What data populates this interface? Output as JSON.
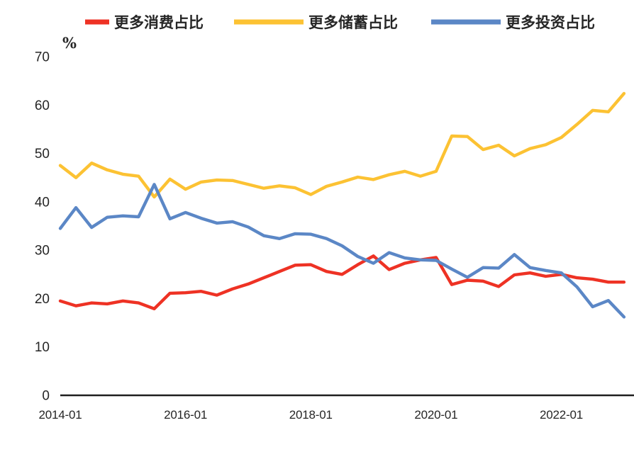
{
  "chart": {
    "unit_label": "%",
    "axis_color": "#1f1f1f",
    "text_color": "#262626",
    "background": "#ffffff"
  },
  "chart_data": {
    "type": "line",
    "title": "",
    "xlabel": "",
    "ylabel": "%",
    "ylim": [
      0,
      70
    ],
    "yticks": [
      0,
      10,
      20,
      30,
      40,
      50,
      60,
      70
    ],
    "xticks": [
      "2014-01",
      "2016-01",
      "2018-01",
      "2020-01",
      "2022-01"
    ],
    "grid": false,
    "legend_position": "top",
    "categories": [
      "2014-01",
      "2014-04",
      "2014-07",
      "2014-10",
      "2015-01",
      "2015-04",
      "2015-07",
      "2015-10",
      "2016-01",
      "2016-04",
      "2016-07",
      "2016-10",
      "2017-01",
      "2017-04",
      "2017-07",
      "2017-10",
      "2018-01",
      "2018-04",
      "2018-07",
      "2018-10",
      "2019-01",
      "2019-04",
      "2019-07",
      "2019-10",
      "2020-01",
      "2020-04",
      "2020-07",
      "2020-10",
      "2021-01",
      "2021-04",
      "2021-07",
      "2021-10",
      "2022-01",
      "2022-04",
      "2022-07",
      "2022-10",
      "2023-01"
    ],
    "series": [
      {
        "name": "更多消费占比",
        "color": "#ee3224",
        "values": [
          19.5,
          18.5,
          19.1,
          18.9,
          19.5,
          19.1,
          17.9,
          21.1,
          21.2,
          21.5,
          20.7,
          22.0,
          23.0,
          24.3,
          25.6,
          26.9,
          27.0,
          25.6,
          25.0,
          27.0,
          28.8,
          26.0,
          27.3,
          28.0,
          28.5,
          22.9,
          23.8,
          23.6,
          22.5,
          24.9,
          25.3,
          24.6,
          25.0,
          24.3,
          24.0,
          23.4,
          23.4
        ]
      },
      {
        "name": "更多储蓄占比",
        "color": "#fcc233",
        "values": [
          47.5,
          45.0,
          48.0,
          46.6,
          45.7,
          45.3,
          41.0,
          44.7,
          42.6,
          44.1,
          44.5,
          44.4,
          43.6,
          42.8,
          43.3,
          42.9,
          41.5,
          43.2,
          44.1,
          45.1,
          44.6,
          45.6,
          46.3,
          45.3,
          46.3,
          53.6,
          53.5,
          50.8,
          51.7,
          49.5,
          51.0,
          51.8,
          53.3,
          56.0,
          58.9,
          58.6,
          62.4
        ]
      },
      {
        "name": "更多投资占比",
        "color": "#5b87c6",
        "values": [
          34.5,
          38.8,
          34.7,
          36.8,
          37.1,
          36.9,
          43.6,
          36.5,
          37.8,
          36.6,
          35.6,
          35.9,
          34.8,
          33.0,
          32.4,
          33.4,
          33.3,
          32.4,
          30.9,
          28.7,
          27.3,
          29.5,
          28.4,
          28.0,
          27.9,
          26.1,
          24.4,
          26.4,
          26.3,
          29.1,
          26.4,
          25.8,
          25.3,
          22.4,
          18.3,
          19.6,
          16.2
        ]
      }
    ]
  }
}
